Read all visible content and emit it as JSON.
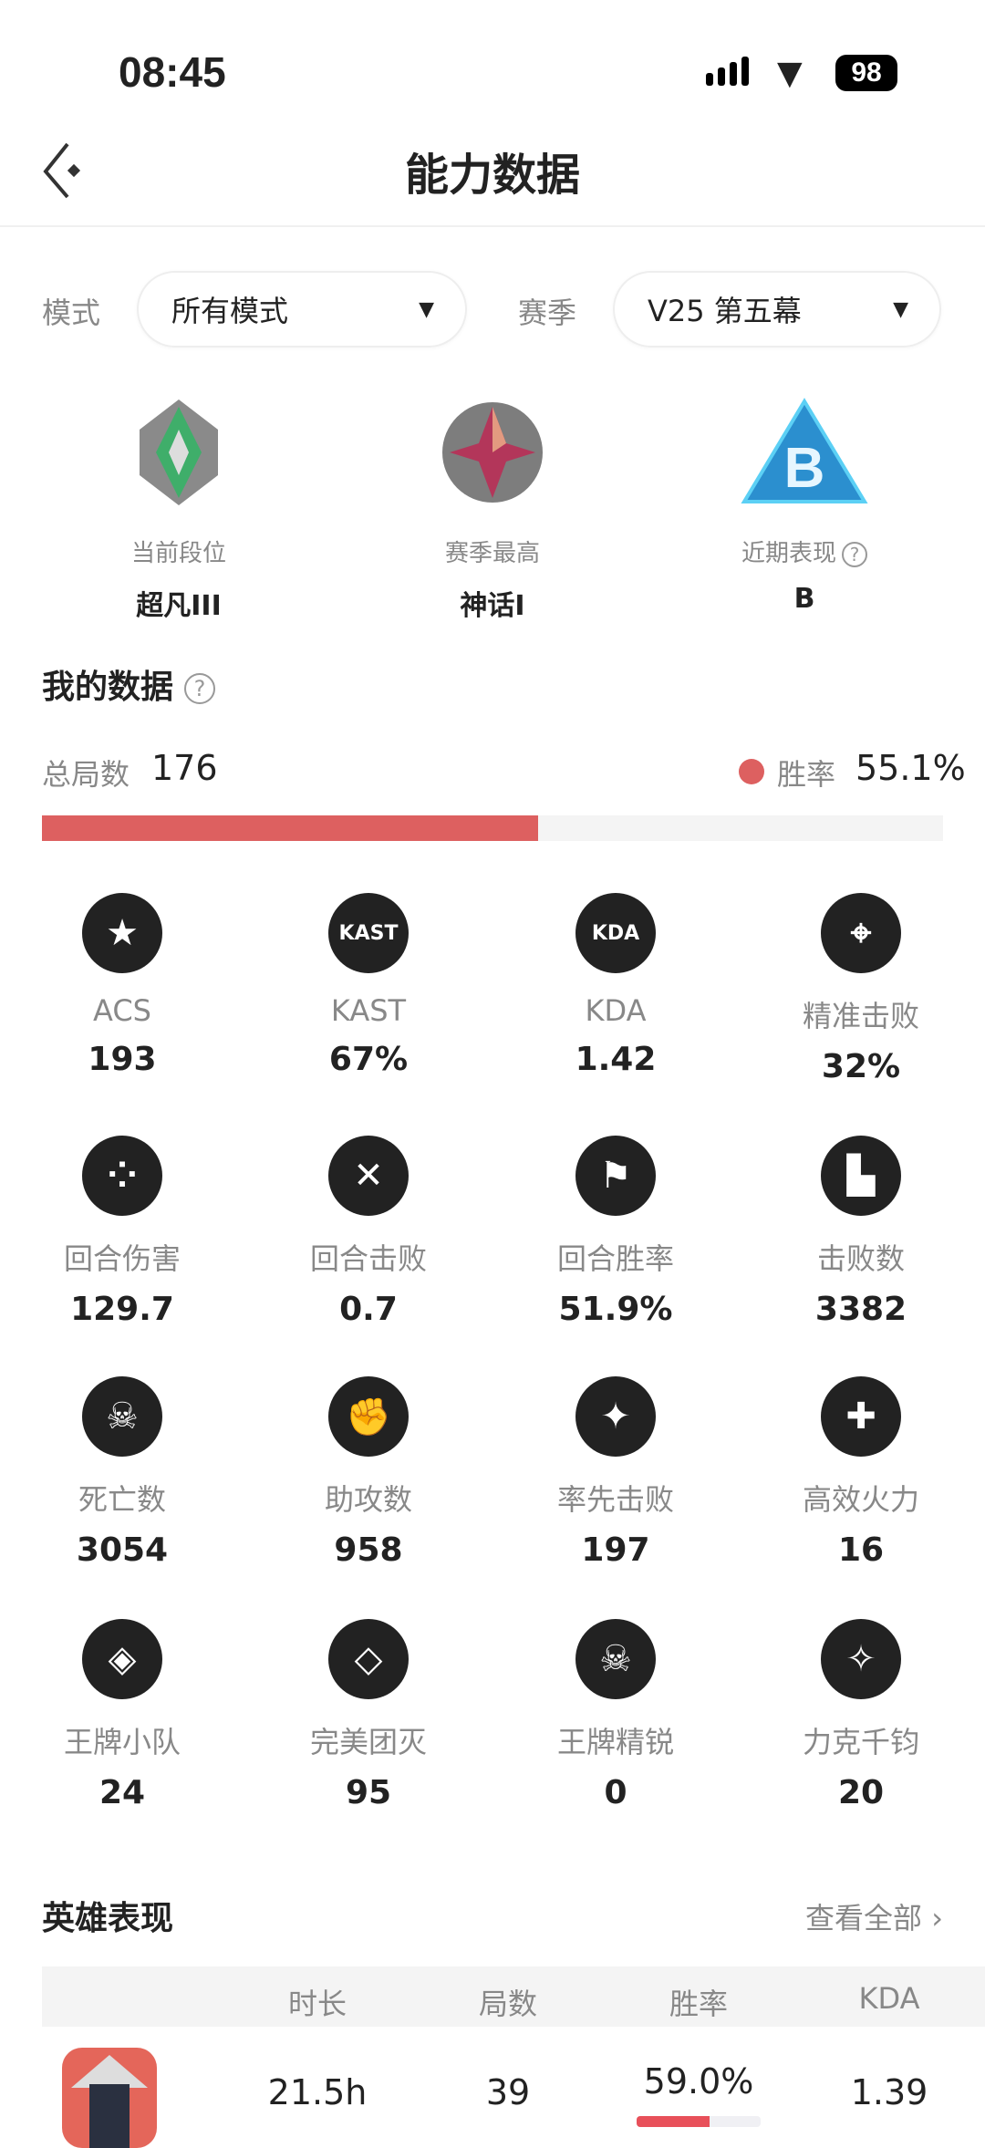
{
  "status_bar": {
    "time": "08:45",
    "battery": "98"
  },
  "header": {
    "title": "能力数据"
  },
  "filters": {
    "mode_label": "模式",
    "mode_value": "所有模式",
    "season_label": "赛季",
    "season_value": "V25 第五幕"
  },
  "ranks": [
    {
      "label": "当前段位",
      "value": "超凡III",
      "icon": "ascendant-rank-icon"
    },
    {
      "label": "赛季最高",
      "value": "神话I",
      "icon": "immortal-rank-icon"
    },
    {
      "label": "近期表现",
      "value": "B",
      "icon": "b-grade-icon"
    }
  ],
  "my_data": {
    "title": "我的数据",
    "total_label": "总局数",
    "total": "176",
    "winrate_label": "胜率",
    "winrate": "55.1%",
    "winrate_fraction": 0.551,
    "accent": "#dd6060"
  },
  "stats": [
    {
      "label": "ACS",
      "value": "193",
      "icon": "acs-star-icon"
    },
    {
      "label": "KAST",
      "value": "67%",
      "icon": "kast-icon",
      "glyph": "KAST"
    },
    {
      "label": "KDA",
      "value": "1.42",
      "icon": "kda-icon",
      "glyph": "KDA"
    },
    {
      "label": "精准击败",
      "value": "32%",
      "icon": "headshot-crosshair-icon"
    },
    {
      "label": "回合伤害",
      "value": "129.7",
      "icon": "damage-icon"
    },
    {
      "label": "回合击败",
      "value": "0.7",
      "icon": "crossed-blades-icon"
    },
    {
      "label": "回合胜率",
      "value": "51.9%",
      "icon": "flag-icon"
    },
    {
      "label": "击败数",
      "value": "3382",
      "icon": "pistol-icon"
    },
    {
      "label": "死亡数",
      "value": "3054",
      "icon": "skull-icon"
    },
    {
      "label": "助攻数",
      "value": "958",
      "icon": "fist-icon"
    },
    {
      "label": "率先击败",
      "value": "197",
      "icon": "first-blood-icon"
    },
    {
      "label": "高效火力",
      "value": "16",
      "icon": "puzzle-icon"
    },
    {
      "label": "王牌小队",
      "value": "24",
      "icon": "ace-squad-icon"
    },
    {
      "label": "完美团灭",
      "value": "95",
      "icon": "diamond-icon"
    },
    {
      "label": "王牌精锐",
      "value": "0",
      "icon": "ace-elite-icon"
    },
    {
      "label": "力克千钧",
      "value": "20",
      "icon": "eagle-icon"
    }
  ],
  "agents": {
    "title": "英雄表现",
    "view_all": "查看全部",
    "columns": [
      "时长",
      "局数",
      "胜率",
      "KDA"
    ],
    "rows": [
      {
        "duration": "21.5h",
        "matches": "39",
        "winrate": "59.0%",
        "winrate_fraction": 0.59,
        "kda": "1.39"
      }
    ]
  }
}
